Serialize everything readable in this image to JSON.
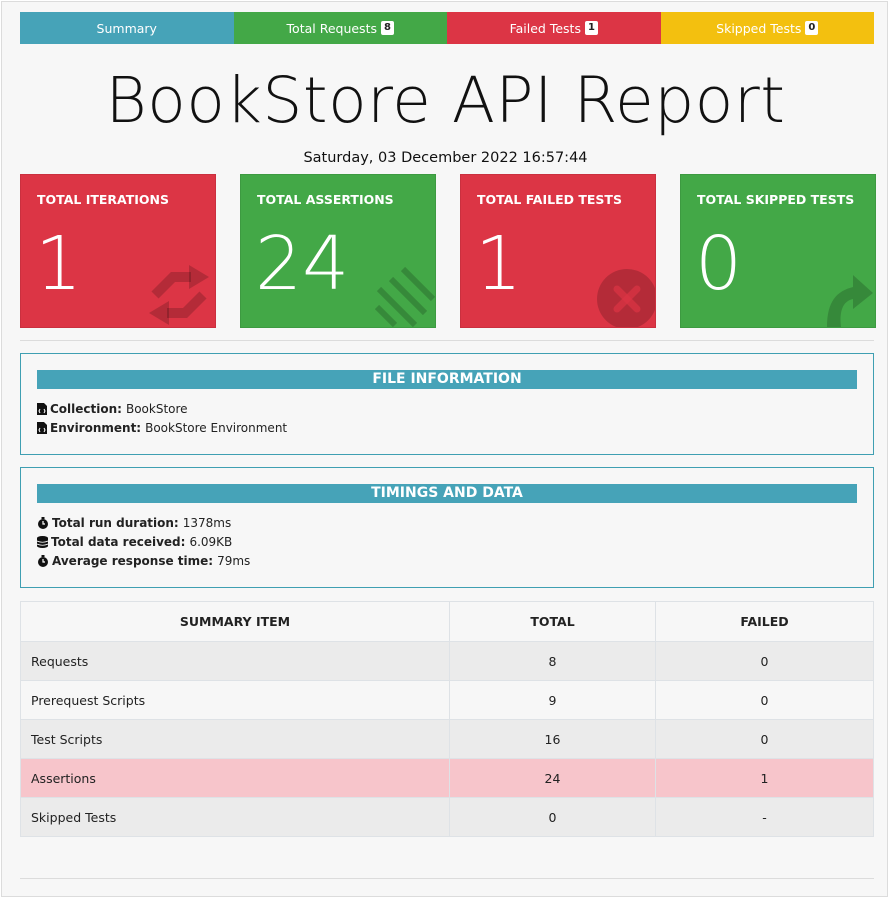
{
  "tabs": [
    {
      "label": "Summary",
      "count": null
    },
    {
      "label": "Total Requests",
      "count": "8"
    },
    {
      "label": "Failed Tests",
      "count": "1"
    },
    {
      "label": "Skipped Tests",
      "count": "0"
    }
  ],
  "report": {
    "title": "BookStore API Report",
    "date": "Saturday, 03 December 2022 16:57:44"
  },
  "cards": [
    {
      "label": "TOTAL ITERATIONS",
      "value": "1",
      "icon": "refresh-icon",
      "color": "#dc3545"
    },
    {
      "label": "TOTAL ASSERTIONS",
      "value": "24",
      "icon": "list-check-icon",
      "color": "#43a847"
    },
    {
      "label": "TOTAL FAILED TESTS",
      "value": "1",
      "icon": "times-circle-icon",
      "color": "#dc3545"
    },
    {
      "label": "TOTAL SKIPPED TESTS",
      "value": "0",
      "icon": "share-arrow-icon",
      "color": "#43a847"
    }
  ],
  "file_info": {
    "heading": "FILE INFORMATION",
    "collection_label": "Collection:",
    "collection_value": "BookStore",
    "environment_label": "Environment:",
    "environment_value": "BookStore Environment"
  },
  "timings": {
    "heading": "TIMINGS AND DATA",
    "duration_label": "Total run duration:",
    "duration_value": "1378ms",
    "data_label": "Total data received:",
    "data_value": "6.09KB",
    "avg_label": "Average response time:",
    "avg_value": "79ms"
  },
  "summary_table": {
    "headers": [
      "SUMMARY ITEM",
      "TOTAL",
      "FAILED"
    ],
    "rows": [
      {
        "item": "Requests",
        "total": "8",
        "failed": "0"
      },
      {
        "item": "Prerequest Scripts",
        "total": "9",
        "failed": "0"
      },
      {
        "item": "Test Scripts",
        "total": "16",
        "failed": "0"
      },
      {
        "item": "Assertions",
        "total": "24",
        "failed": "1"
      },
      {
        "item": "Skipped Tests",
        "total": "0",
        "failed": "-"
      }
    ]
  },
  "colors": {
    "summary_tab": "#46a3b8",
    "requests_tab": "#43a847",
    "failed_tab": "#dc3545",
    "skipped_tab": "#f3c00f",
    "danger_row": "#f7c5cb"
  }
}
